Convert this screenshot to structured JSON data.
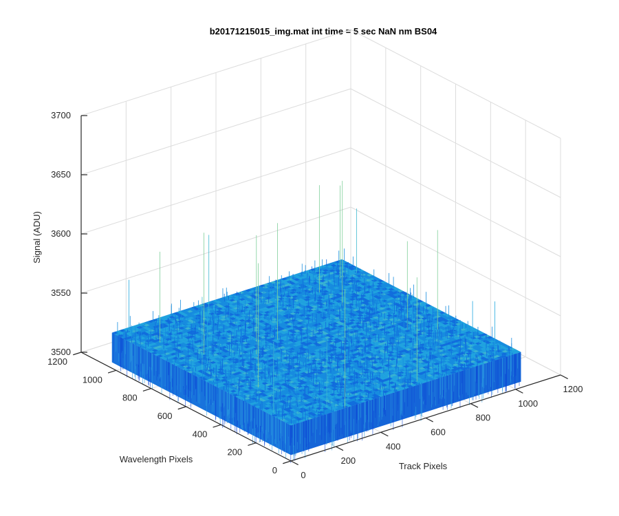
{
  "chart_data": {
    "type": "surface",
    "title": "b20171215015_img.mat int time = 5 sec  NaN nm BS04",
    "xlabel": "Track Pixels",
    "ylabel": "Wavelength Pixels",
    "zlabel": "Signal (ADU)",
    "xlim": [
      0,
      1200
    ],
    "ylim": [
      0,
      1200
    ],
    "zlim": [
      3500,
      3700
    ],
    "x_ticks": [
      "0",
      "200",
      "400",
      "600",
      "800",
      "1000",
      "1200"
    ],
    "y_ticks": [
      "0",
      "200",
      "400",
      "600",
      "800",
      "1000",
      "1200"
    ],
    "z_ticks": [
      "3500",
      "3550",
      "3600",
      "3650",
      "3700"
    ],
    "grid": true,
    "surface": {
      "x_extent": [
        0,
        1024
      ],
      "y_extent": [
        0,
        1024
      ],
      "mean_signal": 3530,
      "signal_range": [
        3505,
        3640
      ],
      "colormap": "parula",
      "colors": [
        "#0d47d6",
        "#1168dd",
        "#178ddf",
        "#22a8df",
        "#3fbbd0",
        "#7fcf9a"
      ]
    }
  }
}
